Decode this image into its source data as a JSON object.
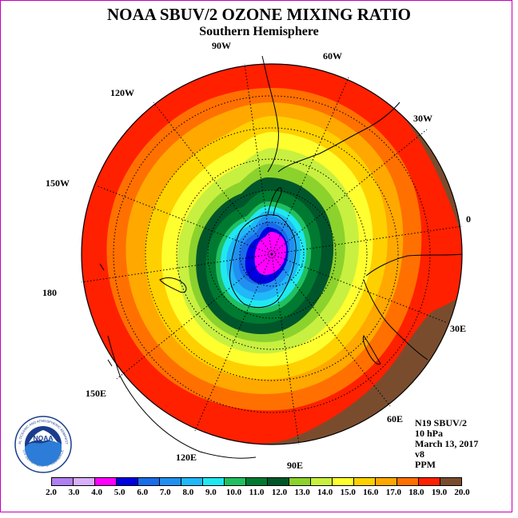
{
  "header": {
    "title": "NOAA SBUV/2 OZONE MIXING RATIO",
    "subtitle": "Southern Hemisphere"
  },
  "map": {
    "projection": "south-polar-stereographic",
    "longitude_labels": [
      "0",
      "30E",
      "60E",
      "90E",
      "120E",
      "150E",
      "180",
      "150W",
      "120W",
      "90W",
      "60W",
      "30W"
    ],
    "contour_bands_ppm_center_to_edge": [
      "5.0",
      "6.0",
      "7.0",
      "8.0",
      "9.0",
      "10.0",
      "11.0",
      "12.0",
      "13.0",
      "14.0",
      "15.0",
      "16.0",
      "17.0",
      "18.0",
      "19.0"
    ]
  },
  "info": {
    "satellite": "N19 SBUV/2",
    "level": "10 hPa",
    "date": "March 13, 2017",
    "version": "v8",
    "units": "PPM"
  },
  "legend": {
    "ticks": [
      "2.0",
      "3.0",
      "4.0",
      "5.0",
      "6.0",
      "7.0",
      "8.0",
      "9.0",
      "10.0",
      "11.0",
      "12.0",
      "13.0",
      "14.0",
      "15.0",
      "16.0",
      "17.0",
      "18.0",
      "19.0",
      "20.0"
    ],
    "colors": [
      "#b080f0",
      "#d8b0f8",
      "#ff00ff",
      "#0000e0",
      "#1a6ce8",
      "#2090f0",
      "#20b8f8",
      "#20e8f0",
      "#20c060",
      "#007a30",
      "#00562a",
      "#8cd22c",
      "#c8f040",
      "#ffff30",
      "#ffd000",
      "#ffa800",
      "#ff7000",
      "#ff2000",
      "#7a4c2e"
    ]
  },
  "logo": {
    "text": "NOAA",
    "ring_top": "NATIONAL OCEANIC AND ATMOSPHERIC ADMINISTRATION",
    "ring_bottom": "U.S. DEPARTMENT OF COMMERCE"
  }
}
